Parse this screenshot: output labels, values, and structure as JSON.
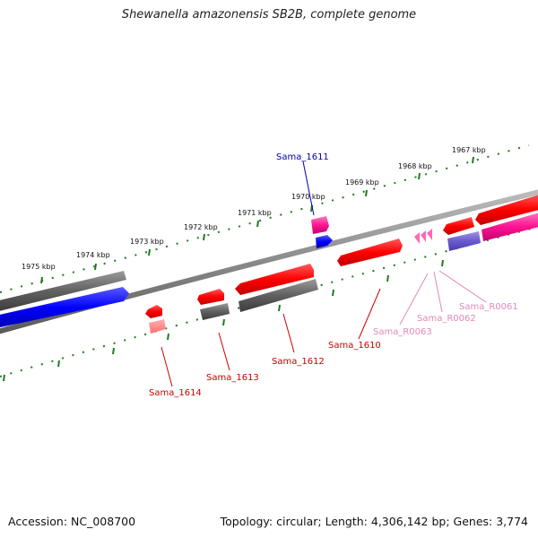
{
  "title": "Shewanella amazonensis SB2B, complete genome",
  "accession": "Accession: NC_008700",
  "stats": "Topology: circular; Length: 4,306,142 bp; Genes: 3,774",
  "colors": {
    "backbone": "#888888",
    "tick": "#1f7a1f",
    "gene_red": "#ff0000",
    "gene_gray": "#606060",
    "gene_blue": "#0000ff",
    "gene_magenta": "#ff1493",
    "gene_purple": "#6a5acd",
    "label_red": "#cc0000",
    "label_blue": "#0000aa",
    "label_pink": "#e089b8"
  },
  "kbp_labels": [
    "1967 kbp",
    "1968 kbp",
    "1969 kbp",
    "1970 kbp",
    "1971 kbp",
    "1972 kbp",
    "1973 kbp",
    "1974 kbp",
    "1975 kbp"
  ],
  "gene_labels": [
    "Sama_1611",
    "Sama_1610",
    "Sama_1612",
    "Sama_1613",
    "Sama_1614",
    "Sama_R0063",
    "Sama_R0062",
    "Sama_R0061"
  ]
}
